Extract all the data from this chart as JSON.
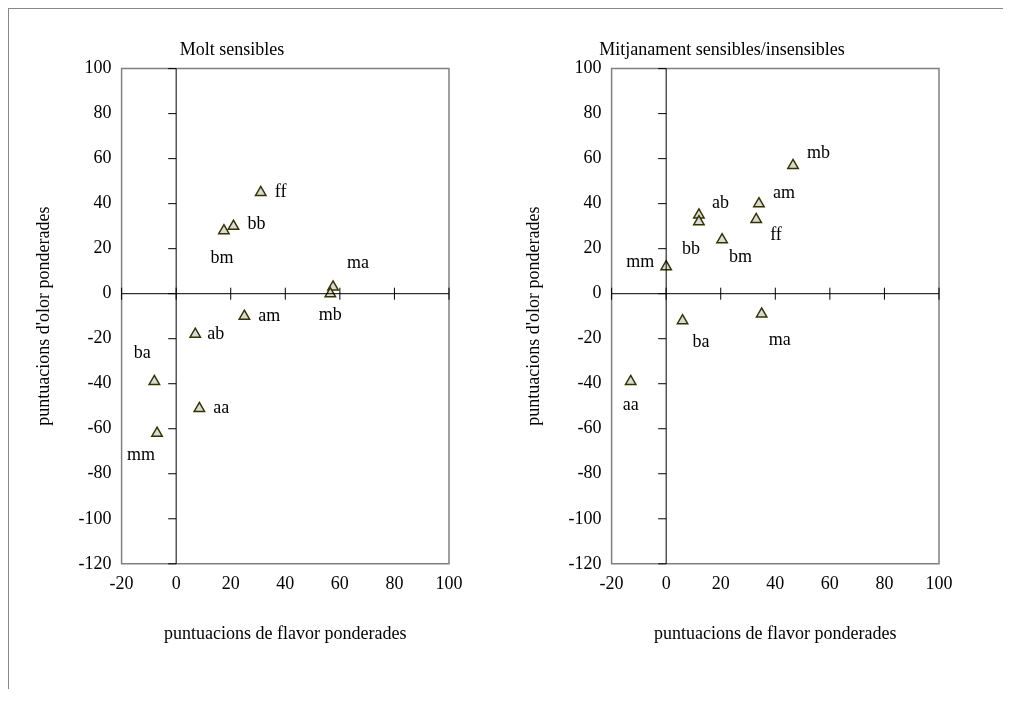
{
  "chart_data": [
    {
      "type": "scatter",
      "title": "Molt sensibles",
      "xlabel": "puntuacions de flavor ponderades",
      "ylabel": "puntuacions d'olor ponderades",
      "marker": "triangle",
      "series": [
        {
          "color": "#333300",
          "x": [
            31,
            21,
            17.5,
            57.5,
            56.5,
            25,
            7,
            -8,
            8.5,
            -7
          ],
          "values": [
            45,
            30,
            28,
            3,
            0,
            -10,
            -18,
            -39,
            -51,
            -62
          ]
        }
      ],
      "annotations": [
        {
          "text": "ff",
          "x": 31,
          "y": 45
        },
        {
          "text": "bb",
          "x": 21,
          "y": 30
        },
        {
          "text": "bm",
          "x": 17.5,
          "y": 28
        },
        {
          "text": "ma",
          "x": 57.5,
          "y": 3
        },
        {
          "text": "mb",
          "x": 56.5,
          "y": 0
        },
        {
          "text": "am",
          "x": 25,
          "y": -10
        },
        {
          "text": "ab",
          "x": 7,
          "y": -18
        },
        {
          "text": "ba",
          "x": -8,
          "y": -39
        },
        {
          "text": "aa",
          "x": 8.5,
          "y": -51
        },
        {
          "text": "mm",
          "x": -7,
          "y": -62
        }
      ],
      "xlim": [
        -20,
        100
      ],
      "xticks": [
        -20,
        0,
        20,
        40,
        60,
        80,
        100
      ],
      "ylim": [
        -120,
        100
      ],
      "yticks": [
        -120,
        -100,
        -80,
        -60,
        -40,
        -20,
        0,
        20,
        40,
        60,
        80,
        100
      ],
      "legend": false
    },
    {
      "type": "scatter",
      "title": "Mitjanament sensibles/insensibles",
      "xlabel": "puntuacions de flavor ponderades",
      "ylabel": "puntuacions d'olor ponderades",
      "marker": "triangle",
      "series": [
        {
          "color": "#333300",
          "x": [
            46.5,
            34,
            33,
            12,
            12,
            20.5,
            0,
            6,
            35,
            -13
          ],
          "values": [
            57,
            40,
            33,
            35,
            32,
            24,
            12,
            -12,
            -9,
            -39
          ]
        }
      ],
      "annotations": [
        {
          "text": "mb",
          "x": 46.5,
          "y": 57
        },
        {
          "text": "am",
          "x": 34,
          "y": 40
        },
        {
          "text": "ff",
          "x": 33,
          "y": 33
        },
        {
          "text": "ab",
          "x": 12,
          "y": 35
        },
        {
          "text": "bb",
          "x": 12,
          "y": 32
        },
        {
          "text": "bm",
          "x": 20.5,
          "y": 24
        },
        {
          "text": "mm",
          "x": 0,
          "y": 12
        },
        {
          "text": "ba",
          "x": 6,
          "y": -12
        },
        {
          "text": "ma",
          "x": 35,
          "y": -9
        },
        {
          "text": "aa",
          "x": -13,
          "y": -39
        }
      ],
      "xlim": [
        -20,
        100
      ],
      "xticks": [
        -20,
        0,
        20,
        40,
        60,
        80,
        100
      ],
      "ylim": [
        -120,
        100
      ],
      "yticks": [
        -120,
        -100,
        -80,
        -60,
        -40,
        -20,
        0,
        20,
        40,
        60,
        80,
        100
      ],
      "legend": false
    }
  ]
}
